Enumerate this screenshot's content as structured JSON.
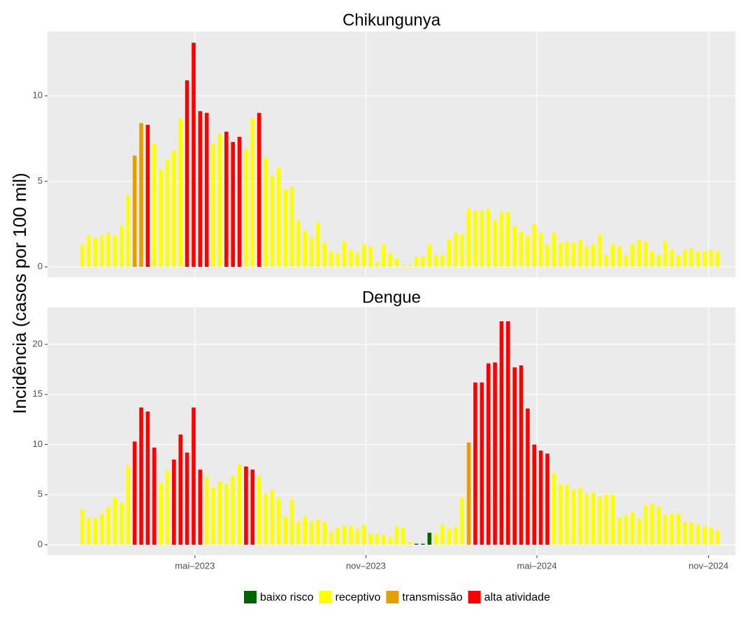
{
  "chart_data": {
    "type": "bar",
    "y_label": "Incidência (casos por 100 mil)",
    "legend": [
      {
        "name": "baixo risco",
        "color": "#006400"
      },
      {
        "name": "receptivo",
        "color": "#ffff00"
      },
      {
        "name": "transmissão",
        "color": "#e69f00"
      },
      {
        "name": "alta atividade",
        "color": "#ff0000"
      }
    ],
    "legend_position": "bottom",
    "grid": true,
    "categories": [
      null,
      null,
      null,
      null,
      null,
      null,
      null,
      null,
      null,
      null,
      null,
      null,
      null,
      null,
      null,
      null,
      null,
      null,
      null,
      null,
      null,
      null,
      null,
      null,
      null,
      null,
      null,
      null,
      null,
      null,
      null,
      null,
      null,
      null,
      null,
      null,
      null,
      null,
      null,
      null,
      null,
      null,
      null,
      null,
      null,
      null,
      null,
      null,
      null,
      null,
      null,
      null,
      null,
      null,
      null,
      null,
      null,
      null,
      null,
      null,
      null,
      null,
      null,
      null,
      null,
      null,
      null,
      null,
      null,
      null,
      null,
      null,
      null,
      null,
      null,
      null,
      null,
      null,
      null,
      null,
      null,
      null,
      null,
      null,
      null,
      null,
      null,
      null,
      null,
      null,
      null,
      null,
      null,
      null,
      null,
      null,
      null,
      null
    ],
    "xlim": [
      -5.3,
      99.7
    ],
    "xticks": [
      {
        "value": 17.2,
        "label": "mai–2023"
      },
      {
        "value": 43.3,
        "label": "nov–2023"
      },
      {
        "value": 69.4,
        "label": "mai–2024"
      },
      {
        "value": 95.6,
        "label": "nov–2024"
      }
    ],
    "panels": [
      {
        "title": "Chikungunya",
        "ylim": [
          -0.61,
          13.76
        ],
        "yticks": [
          0,
          5,
          10
        ],
        "values": [
          1.3,
          1.8,
          1.7,
          1.8,
          2.0,
          1.8,
          2.4,
          4.2,
          6.5,
          8.4,
          8.3,
          7.2,
          5.7,
          6.3,
          6.8,
          8.7,
          10.9,
          13.1,
          9.1,
          9.0,
          7.2,
          7.8,
          7.9,
          7.3,
          7.6,
          6.9,
          8.7,
          9.0,
          6.4,
          5.3,
          5.8,
          4.5,
          4.7,
          2.7,
          2.1,
          1.7,
          2.6,
          1.4,
          0.9,
          0.8,
          1.5,
          1.0,
          0.8,
          1.3,
          1.2,
          0.3,
          1.3,
          0.8,
          0.5,
          0.1,
          0.1,
          0.6,
          0.6,
          1.3,
          0.7,
          0.7,
          1.6,
          2.0,
          1.9,
          3.4,
          3.3,
          3.3,
          3.4,
          2.7,
          3.2,
          3.2,
          2.4,
          2.1,
          1.8,
          2.5,
          2.0,
          1.3,
          2.0,
          1.4,
          1.5,
          1.4,
          1.6,
          1.2,
          1.3,
          1.9,
          0.7,
          1.3,
          1.2,
          0.7,
          1.3,
          1.6,
          1.5,
          0.9,
          0.7,
          1.5,
          1.0,
          0.7,
          1.0,
          1.1,
          0.9,
          0.9,
          1.0,
          0.9
        ],
        "level": [
          1,
          1,
          1,
          1,
          1,
          1,
          1,
          1,
          2,
          2,
          3,
          1,
          1,
          1,
          1,
          1,
          3,
          3,
          3,
          3,
          1,
          1,
          3,
          3,
          3,
          1,
          1,
          3,
          1,
          1,
          1,
          1,
          1,
          1,
          1,
          1,
          1,
          1,
          1,
          1,
          1,
          1,
          1,
          1,
          1,
          1,
          1,
          1,
          1,
          1,
          1,
          1,
          1,
          1,
          1,
          1,
          1,
          1,
          1,
          1,
          1,
          1,
          1,
          1,
          1,
          1,
          1,
          1,
          1,
          1,
          1,
          1,
          1,
          1,
          1,
          1,
          1,
          1,
          1,
          1,
          1,
          1,
          1,
          1,
          1,
          1,
          1,
          1,
          1,
          1,
          1,
          1,
          1,
          1,
          1,
          1,
          1,
          1
        ]
      },
      {
        "title": "Dengue",
        "ylim": [
          -1.05,
          23.7
        ],
        "yticks": [
          0,
          5,
          10,
          15,
          20
        ],
        "values": [
          3.5,
          2.7,
          2.7,
          3.1,
          3.8,
          4.7,
          4.2,
          7.9,
          10.3,
          13.7,
          13.3,
          9.7,
          6.2,
          7.4,
          8.5,
          11.0,
          9.2,
          13.7,
          7.5,
          6.8,
          5.7,
          6.3,
          6.1,
          6.9,
          8.0,
          7.8,
          7.5,
          6.9,
          5.1,
          5.5,
          4.6,
          2.8,
          4.5,
          2.3,
          2.8,
          2.3,
          2.5,
          2.3,
          1.3,
          1.7,
          1.9,
          1.9,
          1.6,
          2.0,
          1.1,
          1.1,
          1.0,
          0.7,
          1.9,
          1.7,
          0.3,
          0.1,
          0.1,
          1.2,
          1.1,
          2.0,
          1.6,
          1.8,
          4.7,
          10.2,
          16.2,
          16.2,
          18.1,
          18.2,
          22.3,
          22.3,
          17.7,
          17.9,
          13.6,
          10.0,
          9.4,
          9.1,
          7.1,
          6.0,
          6.0,
          5.5,
          5.7,
          5.1,
          5.2,
          4.8,
          5.0,
          5.0,
          2.7,
          3.0,
          3.2,
          2.6,
          3.9,
          4.1,
          3.8,
          3.0,
          3.1,
          3.1,
          2.3,
          2.3,
          2.0,
          1.9,
          1.7,
          1.4
        ],
        "level": [
          1,
          1,
          1,
          1,
          1,
          1,
          1,
          1,
          3,
          3,
          3,
          3,
          1,
          1,
          3,
          3,
          3,
          3,
          3,
          1,
          1,
          1,
          1,
          1,
          1,
          3,
          3,
          1,
          1,
          1,
          1,
          1,
          1,
          1,
          1,
          1,
          1,
          1,
          1,
          1,
          1,
          1,
          1,
          1,
          1,
          1,
          1,
          1,
          1,
          1,
          1,
          0,
          0,
          0,
          1,
          1,
          1,
          1,
          1,
          2,
          3,
          3,
          3,
          3,
          3,
          3,
          3,
          3,
          3,
          3,
          3,
          3,
          1,
          1,
          1,
          1,
          1,
          1,
          1,
          1,
          1,
          1,
          1,
          1,
          1,
          1,
          1,
          1,
          1,
          1,
          1,
          1,
          1,
          1,
          1,
          1,
          1,
          1
        ]
      }
    ]
  }
}
